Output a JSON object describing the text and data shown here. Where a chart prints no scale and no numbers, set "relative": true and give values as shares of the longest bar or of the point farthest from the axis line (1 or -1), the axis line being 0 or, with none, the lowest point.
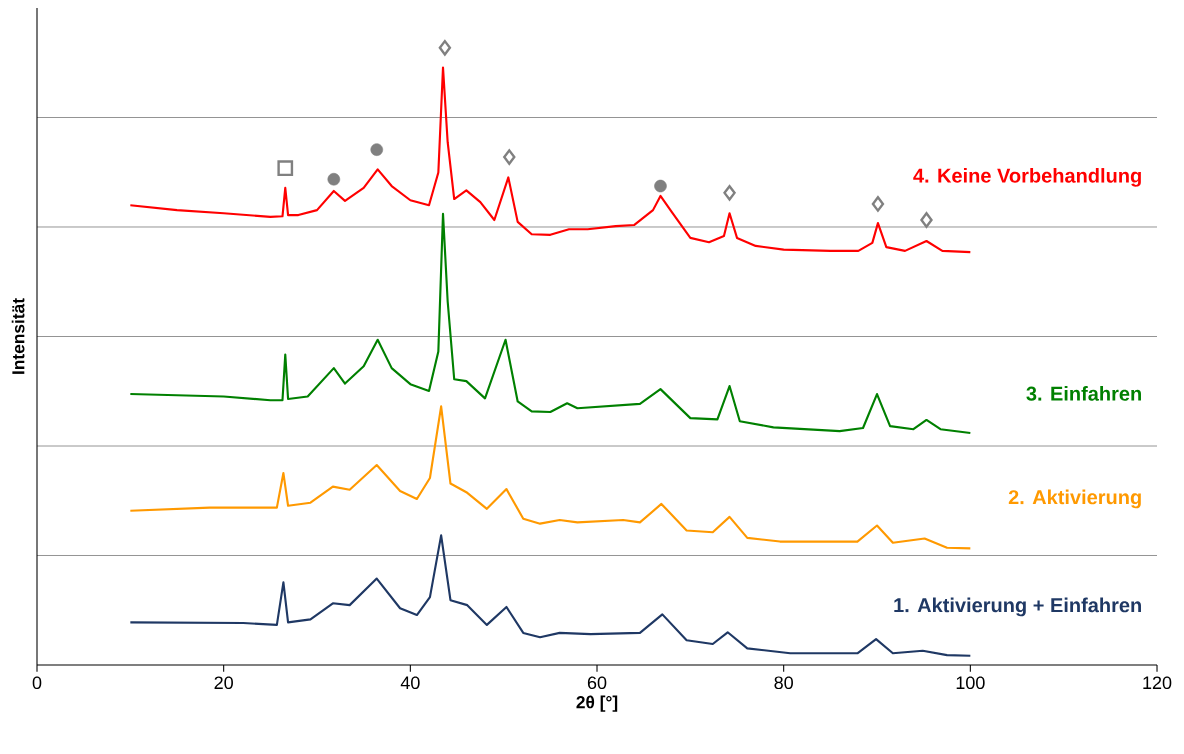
{
  "chart_data": {
    "type": "line",
    "relative": true,
    "xlabel": "2θ [°]",
    "ylabel": "Intensität",
    "xlim": [
      0,
      120
    ],
    "xticks": [
      0,
      20,
      40,
      60,
      80,
      100,
      120
    ],
    "grid": "y",
    "series": [
      {
        "name": "1. Aktivierung + Einfahren",
        "color": "#1f3864",
        "x": [
          10,
          22.1,
          25.7,
          26.4,
          26.9,
          29.3,
          31.7,
          33.5,
          36.4,
          38.9,
          40.7,
          42.1,
          43.3,
          44.3,
          46.1,
          48.2,
          50.3,
          52.1,
          53.9,
          56,
          59.3,
          64.6,
          67,
          69.6,
          72.4,
          74,
          76.1,
          80.7,
          87.9,
          89.9,
          91.7,
          94.9,
          97.5,
          100
        ],
        "values": [
          0.069,
          0.068,
          0.065,
          0.134,
          0.069,
          0.074,
          0.1,
          0.097,
          0.14,
          0.092,
          0.081,
          0.11,
          0.21,
          0.105,
          0.097,
          0.065,
          0.094,
          0.052,
          0.045,
          0.052,
          0.05,
          0.052,
          0.082,
          0.04,
          0.034,
          0.053,
          0.027,
          0.019,
          0.019,
          0.042,
          0.019,
          0.023,
          0.016,
          0.015
        ]
      },
      {
        "name": "2. Aktivierung",
        "color": "#ff9900",
        "x": [
          10,
          18.5,
          25.7,
          26.4,
          26.9,
          29.3,
          31.7,
          33.5,
          36.4,
          38.9,
          40.7,
          42.1,
          43.3,
          44.3,
          46.1,
          48.2,
          50.3,
          52.1,
          53.9,
          56,
          57.9,
          62.8,
          64.6,
          66.9,
          69.6,
          72.4,
          74.2,
          76.1,
          79.6,
          87.9,
          90,
          91.7,
          95.1,
          97.5,
          100
        ],
        "values": [
          0.25,
          0.255,
          0.255,
          0.311,
          0.258,
          0.263,
          0.289,
          0.284,
          0.324,
          0.282,
          0.269,
          0.303,
          0.419,
          0.294,
          0.279,
          0.253,
          0.285,
          0.237,
          0.229,
          0.235,
          0.231,
          0.235,
          0.231,
          0.261,
          0.218,
          0.215,
          0.24,
          0.206,
          0.2,
          0.2,
          0.226,
          0.198,
          0.205,
          0.19,
          0.189
        ]
      },
      {
        "name": "3. Einfahren",
        "color": "#008000",
        "x": [
          10,
          20,
          25,
          26.3,
          26.6,
          26.9,
          29,
          31.8,
          33,
          35,
          36.5,
          38,
          40,
          42,
          43,
          43.5,
          44,
          44.7,
          46,
          48,
          50.2,
          51.5,
          53,
          55,
          56.8,
          57.9,
          64.6,
          66.8,
          70,
          72.9,
          74.2,
          75.3,
          78.9,
          86,
          88.5,
          90,
          91.4,
          93.9,
          95.3,
          96.8,
          100
        ],
        "values": [
          0.439,
          0.435,
          0.429,
          0.429,
          0.503,
          0.431,
          0.435,
          0.481,
          0.456,
          0.484,
          0.527,
          0.481,
          0.455,
          0.444,
          0.508,
          0.731,
          0.589,
          0.463,
          0.46,
          0.432,
          0.527,
          0.427,
          0.411,
          0.41,
          0.424,
          0.416,
          0.423,
          0.447,
          0.4,
          0.398,
          0.452,
          0.395,
          0.385,
          0.379,
          0.384,
          0.439,
          0.387,
          0.382,
          0.397,
          0.382,
          0.376
        ]
      },
      {
        "name": "4. Keine Vorbehandlung",
        "color": "#ff0000",
        "x": [
          10,
          15,
          20,
          25,
          26.3,
          26.6,
          26.9,
          28,
          30,
          31.8,
          33,
          35,
          36.5,
          38,
          40,
          42,
          43,
          43.5,
          44,
          44.7,
          46,
          47.5,
          49,
          50.5,
          51.5,
          53,
          55,
          57,
          59,
          62,
          64,
          66,
          66.8,
          68,
          70,
          72,
          73.6,
          74.2,
          75,
          77,
          80,
          85,
          88,
          89.5,
          90.1,
          91,
          93,
          95.3,
          97,
          100
        ],
        "values": [
          0.745,
          0.737,
          0.732,
          0.726,
          0.727,
          0.773,
          0.729,
          0.729,
          0.737,
          0.768,
          0.752,
          0.773,
          0.803,
          0.776,
          0.753,
          0.745,
          0.798,
          0.968,
          0.847,
          0.755,
          0.769,
          0.75,
          0.721,
          0.79,
          0.718,
          0.698,
          0.697,
          0.706,
          0.706,
          0.711,
          0.713,
          0.737,
          0.76,
          0.734,
          0.692,
          0.685,
          0.695,
          0.732,
          0.692,
          0.679,
          0.673,
          0.671,
          0.671,
          0.684,
          0.716,
          0.677,
          0.671,
          0.687,
          0.671,
          0.669
        ]
      },
      {
        "type": "scatter",
        "marker": "square",
        "color": "#808080",
        "x": [
          26.6
        ],
        "values": [
          0.805
        ]
      },
      {
        "type": "scatter",
        "marker": "circle",
        "color": "#808080",
        "x": [
          31.8,
          36.4,
          66.8
        ],
        "values": [
          0.787,
          0.835,
          0.776
        ]
      },
      {
        "type": "scatter",
        "marker": "diamond",
        "color": "#808080",
        "x": [
          43.7,
          50.6,
          74.2,
          90.1,
          95.3
        ],
        "values": [
          1.0,
          0.823,
          0.765,
          0.747,
          0.721
        ]
      }
    ]
  }
}
